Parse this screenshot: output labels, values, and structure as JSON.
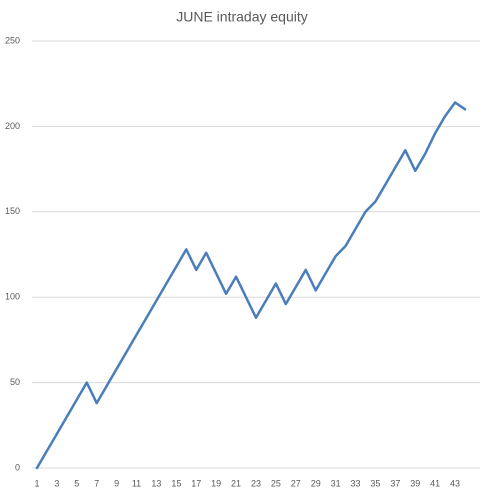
{
  "chart_data": {
    "type": "line",
    "title": "JUNE intraday equity",
    "categories": [
      1,
      null,
      3,
      null,
      5,
      null,
      7,
      null,
      9,
      null,
      11,
      null,
      13,
      null,
      15,
      null,
      17,
      null,
      19,
      null,
      21,
      null,
      23,
      null,
      25,
      null,
      27,
      null,
      29,
      null,
      31,
      null,
      33,
      null,
      35,
      null,
      37,
      null,
      39,
      null,
      41,
      null,
      43,
      null
    ],
    "values": [
      0,
      10,
      20,
      30,
      40,
      50,
      38,
      48,
      58,
      68,
      78,
      88,
      98,
      108,
      118,
      128,
      116,
      126,
      114,
      102,
      112,
      100,
      88,
      98,
      108,
      96,
      106,
      116,
      104,
      114,
      124,
      130,
      140,
      150,
      156,
      166,
      176,
      186,
      174,
      184,
      196,
      206,
      214,
      210
    ],
    "color": "#4a7ebb",
    "ylim": [
      0,
      250
    ],
    "yticks": [
      0,
      50,
      100,
      150,
      200,
      250
    ],
    "grid": true
  }
}
